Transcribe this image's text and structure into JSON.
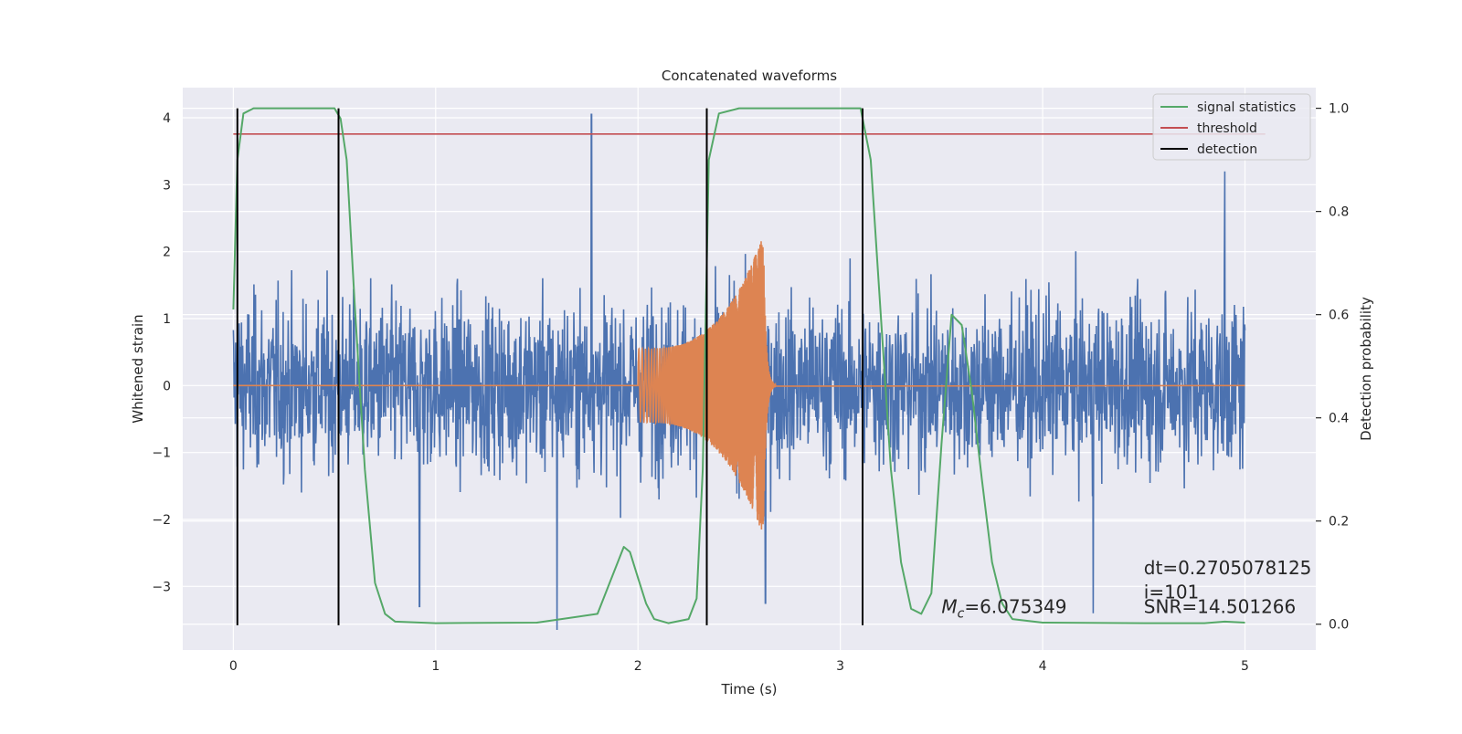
{
  "chart_data": {
    "type": "line",
    "title": "Concatenated waveforms",
    "xlabel": "Time (s)",
    "ylabel": "Whitened strain",
    "ylabel_right": "Detection probability",
    "xlim": [
      -0.25,
      5.35
    ],
    "ylim": [
      -3.95,
      4.45
    ],
    "ylim_right": [
      -0.05,
      1.04
    ],
    "x_ticks": [
      0,
      1,
      2,
      3,
      4,
      5
    ],
    "x_tick_labels": [
      "0",
      "1",
      "2",
      "3",
      "4",
      "5"
    ],
    "y_ticks": [
      -3,
      -2,
      -1,
      0,
      1,
      2,
      3,
      4
    ],
    "y_tick_labels": [
      "−3",
      "−2",
      "−1",
      "0",
      "1",
      "2",
      "3",
      "4"
    ],
    "y_right_ticks": [
      0.0,
      0.2,
      0.4,
      0.6,
      0.8,
      1.0
    ],
    "y_right_tick_labels": [
      "0.0",
      "0.2",
      "0.4",
      "0.6",
      "0.8",
      "1.0"
    ],
    "grid": true,
    "legend_position": "top-right",
    "series": [
      {
        "name": "signal statistics",
        "axis": "right",
        "color": "#55a868",
        "x": [
          0,
          0.02,
          0.05,
          0.1,
          0.2,
          0.3,
          0.4,
          0.5,
          0.53,
          0.56,
          0.6,
          0.65,
          0.7,
          0.75,
          0.8,
          1.0,
          1.5,
          1.8,
          1.88,
          1.93,
          1.96,
          2.0,
          2.04,
          2.08,
          2.15,
          2.25,
          2.29,
          2.32,
          2.35,
          2.4,
          2.5,
          2.8,
          3.1,
          3.15,
          3.2,
          3.25,
          3.3,
          3.35,
          3.4,
          3.45,
          3.5,
          3.55,
          3.6,
          3.65,
          3.7,
          3.75,
          3.8,
          3.85,
          4.0,
          4.5,
          4.8,
          4.9,
          5.0
        ],
        "values": [
          0.61,
          0.9,
          0.99,
          1.0,
          1.0,
          1.0,
          1.0,
          1.0,
          0.98,
          0.9,
          0.62,
          0.3,
          0.08,
          0.02,
          0.005,
          0.002,
          0.003,
          0.02,
          0.1,
          0.15,
          0.14,
          0.09,
          0.04,
          0.01,
          0.002,
          0.01,
          0.05,
          0.3,
          0.9,
          0.99,
          1.0,
          1.0,
          1.0,
          0.9,
          0.6,
          0.3,
          0.12,
          0.03,
          0.02,
          0.06,
          0.35,
          0.6,
          0.58,
          0.45,
          0.28,
          0.12,
          0.04,
          0.01,
          0.003,
          0.002,
          0.002,
          0.005,
          0.003
        ]
      },
      {
        "name": "threshold",
        "axis": "right",
        "color": "#c44e52",
        "x": [
          0,
          5.1
        ],
        "values": [
          0.95,
          0.95
        ]
      },
      {
        "name": "detection",
        "axis": "right",
        "color": "#000000",
        "x_positions": [
          0.02,
          0.52,
          2.34,
          3.11
        ],
        "range": [
          -0.002,
          1.0
        ]
      },
      {
        "name": "",
        "axis": "left",
        "color": "#4c72b0",
        "kind": "noise",
        "x_range": [
          0,
          5
        ],
        "typical_amplitude": 2.1,
        "extremes": [
          {
            "x": 1.77,
            "y": 4.05
          },
          {
            "x": 1.6,
            "y": -3.65
          },
          {
            "x": 0.92,
            "y": -3.3
          },
          {
            "x": 2.63,
            "y": -3.25
          },
          {
            "x": 4.9,
            "y": 3.2
          },
          {
            "x": 4.25,
            "y": -3.4
          }
        ]
      },
      {
        "name": "",
        "axis": "left",
        "color": "#dd8452",
        "kind": "chirp",
        "start": 2.0,
        "merger": 2.62,
        "end": 2.68,
        "peak_amplitude": 2.25,
        "start_amplitude": 0.55
      }
    ],
    "annotations": [
      {
        "prefix": "M",
        "subscript": "c",
        "text": "=6.075349",
        "x": 3.5,
        "y": -3.4
      },
      {
        "text": "dt=0.2705078125",
        "x": 4.5,
        "y": -2.82
      },
      {
        "text": " i=101",
        "x": 4.5,
        "y": -3.18
      },
      {
        "text": "SNR=14.501266",
        "x": 4.5,
        "y": -3.4
      }
    ]
  }
}
